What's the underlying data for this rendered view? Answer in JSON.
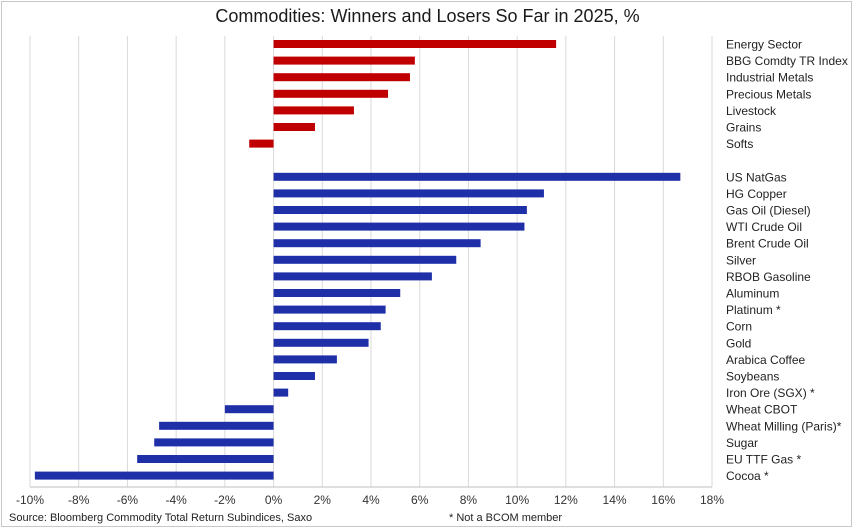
{
  "chart_data": {
    "type": "bar",
    "orientation": "horizontal",
    "title": "Commodities: Winners and Losers So Far in 2025, %",
    "xlim": [
      -10,
      18
    ],
    "xticks": [
      -10,
      -8,
      -6,
      -4,
      -2,
      0,
      2,
      4,
      6,
      8,
      10,
      12,
      14,
      16,
      18
    ],
    "tick_suffix": "%",
    "grid": "vertical",
    "groups": [
      {
        "color": "#c00000",
        "items": [
          {
            "label": "Energy Sector",
            "value": 11.6
          },
          {
            "label": "BBG Comdty TR Index",
            "value": 5.8
          },
          {
            "label": "Industrial Metals",
            "value": 5.6
          },
          {
            "label": "Precious Metals",
            "value": 4.7
          },
          {
            "label": "Livestock",
            "value": 3.3
          },
          {
            "label": "Grains",
            "value": 1.7
          },
          {
            "label": "Softs",
            "value": -1.0
          }
        ]
      },
      {
        "color": "#1f2fa8",
        "items": [
          {
            "label": "US NatGas",
            "value": 16.7
          },
          {
            "label": "HG Copper",
            "value": 11.1
          },
          {
            "label": "Gas Oil (Diesel)",
            "value": 10.4
          },
          {
            "label": "WTI Crude Oil",
            "value": 10.3
          },
          {
            "label": "Brent Crude Oil",
            "value": 8.5
          },
          {
            "label": "Silver",
            "value": 7.5
          },
          {
            "label": "RBOB Gasoline",
            "value": 6.5
          },
          {
            "label": "Aluminum",
            "value": 5.2
          },
          {
            "label": "Platinum *",
            "value": 4.6
          },
          {
            "label": "Corn",
            "value": 4.4
          },
          {
            "label": "Gold",
            "value": 3.9
          },
          {
            "label": "Arabica Coffee",
            "value": 2.6
          },
          {
            "label": "Soybeans",
            "value": 1.7
          },
          {
            "label": "Iron Ore (SGX) *",
            "value": 0.6
          },
          {
            "label": "Wheat CBOT",
            "value": -2.0
          },
          {
            "label": "Wheat Milling (Paris)*",
            "value": -4.7
          },
          {
            "label": "Sugar",
            "value": -4.9
          },
          {
            "label": "EU TTF Gas *",
            "value": -5.6
          },
          {
            "label": "Cocoa *",
            "value": -9.8
          }
        ]
      }
    ]
  },
  "footer": {
    "source": "Source: Bloomberg Commodity Total Return Subindices, Saxo",
    "note": "* Not a BCOM member"
  }
}
